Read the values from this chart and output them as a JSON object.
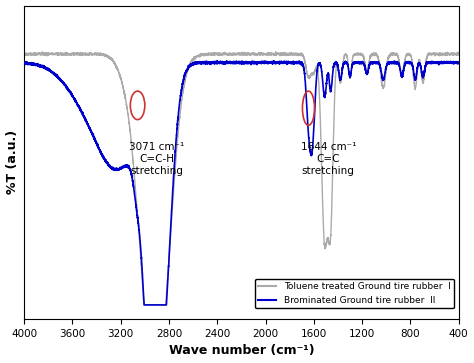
{
  "xlabel": "Wave number (cm⁻¹)",
  "ylabel": "%T (a.u.)",
  "xlim": [
    4000,
    400
  ],
  "ylim": [
    0.0,
    1.1
  ],
  "xticks": [
    4000,
    3600,
    3200,
    2800,
    2400,
    2000,
    1600,
    1200,
    800,
    400
  ],
  "annotation1_text": "3071 cm⁻¹\nC=C-H\nstretching",
  "annotation2_text": "1644 cm⁻¹\nC=C\nstretching",
  "legend_label1": "Toluene treated Ground tire rubber  I",
  "legend_label2": "Brominated Ground tire rubber  II",
  "color_gray": "#aaaaaa",
  "color_blue": "#0000cc",
  "color_circle": "#cc3333"
}
